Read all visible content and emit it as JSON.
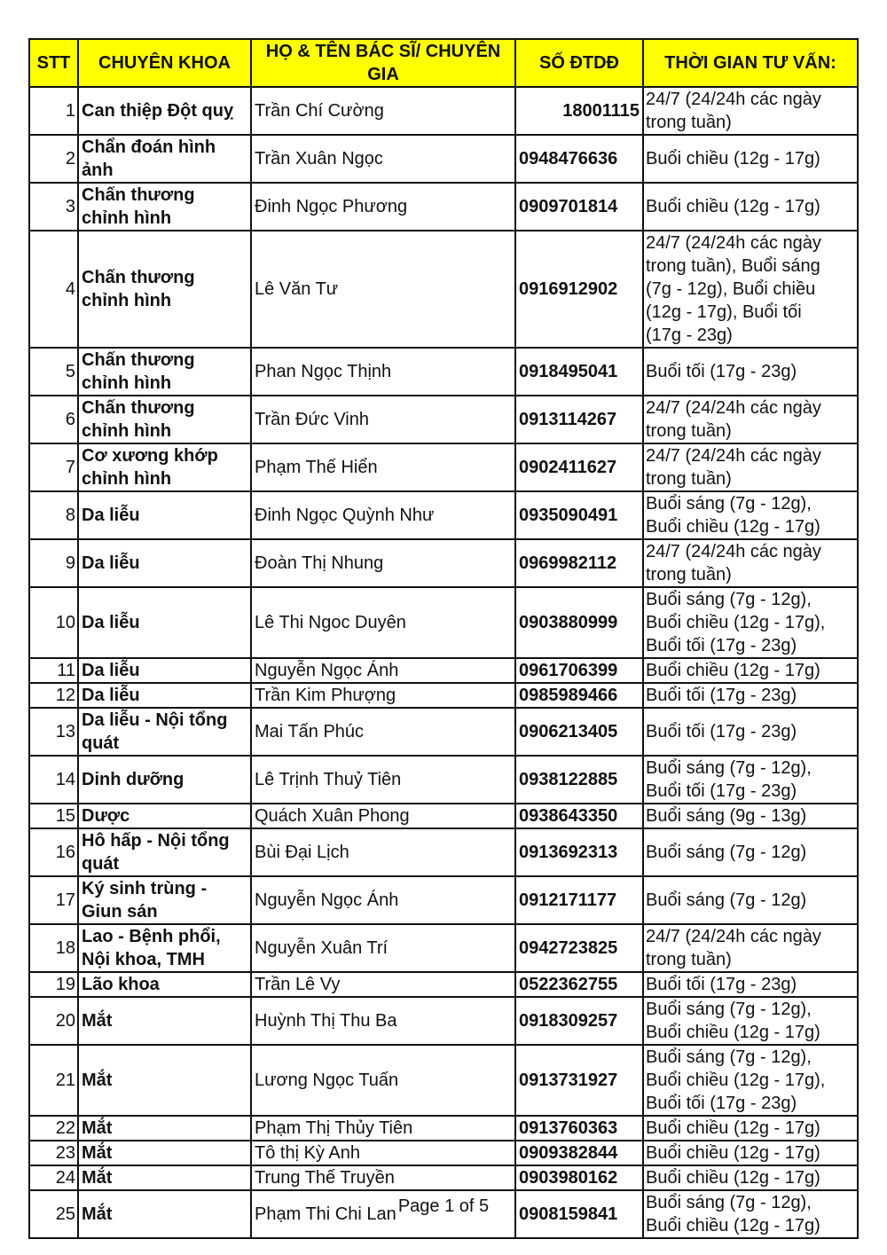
{
  "headers": [
    "STT",
    "CHUYÊN KHOA",
    "HỌ & TÊN BÁC SĨ/ CHUYÊN GIA",
    "SỐ ĐTDĐ",
    "THỜI GIAN TƯ VẤN:"
  ],
  "header_color": "#ffff00",
  "rows": [
    {
      "stt": "1",
      "spec": "Can thiệp Đột quỵ",
      "name": "Trần Chí Cường",
      "phone": "18001115",
      "time": "24/7 (24/24h các ngày\ntrong tuần)"
    },
    {
      "stt": "2",
      "spec": "Chẩn đoán hình\nảnh",
      "name": "Trần Xuân Ngọc",
      "phone": "0948476636",
      "time": "Buổi chiều (12g - 17g)"
    },
    {
      "stt": "3",
      "spec": "Chấn thương\nchỉnh hình",
      "name": "Đinh Ngọc Phương",
      "phone": "0909701814",
      "time": "Buổi chiều (12g - 17g)"
    },
    {
      "stt": "4",
      "spec": "Chấn thương\nchỉnh hình",
      "name": "Lê Văn Tư",
      "phone": "0916912902",
      "time": "24/7 (24/24h các ngày\ntrong tuần), Buổi sáng\n(7g - 12g), Buổi chiều\n(12g - 17g), Buổi tối\n(17g - 23g)"
    },
    {
      "stt": "5",
      "spec": "Chấn thương\nchỉnh hình",
      "name": "Phan Ngọc Thịnh",
      "phone": "0918495041",
      "time": "Buổi tối (17g - 23g)"
    },
    {
      "stt": "6",
      "spec": "Chấn thương\nchỉnh hình",
      "name": "Trần Đức Vinh",
      "phone": "0913114267",
      "time": "24/7 (24/24h các ngày\ntrong tuần)"
    },
    {
      "stt": "7",
      "spec": "Cơ xương khớp\nchỉnh hình",
      "name": "Phạm Thế Hiển",
      "phone": "0902411627",
      "time": "24/7 (24/24h các ngày\ntrong tuần)"
    },
    {
      "stt": "8",
      "spec": "Da liễu",
      "name": "Đinh Ngọc Quỳnh Như",
      "phone": "0935090491",
      "time": "Buổi sáng (7g - 12g),\nBuổi chiều (12g - 17g)"
    },
    {
      "stt": "9",
      "spec": "Da liễu",
      "name": "Đoàn Thị Nhung",
      "phone": "0969982112",
      "time": "24/7 (24/24h các ngày\ntrong tuần)"
    },
    {
      "stt": "10",
      "spec": "Da liễu",
      "name": "Lê Thi Ngoc Duyên",
      "phone": "0903880999",
      "time": "Buổi sáng (7g - 12g),\nBuổi chiều (12g - 17g),\nBuổi tối (17g - 23g)"
    },
    {
      "stt": "11",
      "spec": "Da liễu",
      "name": "Nguyễn Ngọc Ánh",
      "phone": "0961706399",
      "time": "Buổi chiều (12g - 17g)"
    },
    {
      "stt": "12",
      "spec": "Da liễu",
      "name": "Trần Kim Phượng",
      "phone": "0985989466",
      "time": "Buổi tối (17g - 23g)"
    },
    {
      "stt": "13",
      "spec": "Da liễu - Nội tổng\nquát",
      "name": "Mai Tấn Phúc",
      "phone": "0906213405",
      "time": "Buổi tối (17g - 23g)"
    },
    {
      "stt": "14",
      "spec": "Dinh dưỡng",
      "name": "Lê Trịnh Thuỷ Tiên",
      "phone": "0938122885",
      "time": "Buổi sáng (7g - 12g),\nBuổi tối (17g - 23g)"
    },
    {
      "stt": "15",
      "spec": "Dược",
      "name": "Quách Xuân Phong",
      "phone": "0938643350",
      "time": "Buổi sáng (9g - 13g)"
    },
    {
      "stt": "16",
      "spec": "Hô hấp - Nội tổng\nquát",
      "name": "Bùi Đại Lịch",
      "phone": "0913692313",
      "time": "Buổi sáng (7g - 12g)"
    },
    {
      "stt": "17",
      "spec": "Ký sinh trùng -\nGiun sán",
      "name": "Nguyễn Ngọc Ánh",
      "phone": "0912171177",
      "time": "Buổi sáng (7g - 12g)"
    },
    {
      "stt": "18",
      "spec": "Lao - Bệnh phổi,\nNội khoa, TMH",
      "name": "Nguyễn Xuân Trí",
      "phone": "0942723825",
      "time": "24/7 (24/24h các ngày\ntrong tuần)"
    },
    {
      "stt": "19",
      "spec": "Lão khoa",
      "name": "Trần Lê Vy",
      "phone": "0522362755",
      "time": "Buổi tối (17g - 23g)"
    },
    {
      "stt": "20",
      "spec": "Mắt",
      "name": "Huỳnh Thị Thu Ba",
      "phone": "0918309257",
      "time": "Buổi sáng (7g - 12g),\nBuổi chiều (12g - 17g)"
    },
    {
      "stt": "21",
      "spec": "Mắt",
      "name": "Lương Ngọc Tuấn",
      "phone": "0913731927",
      "time": "Buổi sáng (7g - 12g),\nBuổi chiều (12g - 17g),\nBuổi tối (17g - 23g)"
    },
    {
      "stt": "22",
      "spec": "Mắt",
      "name": "Phạm Thị Thủy Tiên",
      "phone": "0913760363",
      "time": "Buổi chiều (12g - 17g)"
    },
    {
      "stt": "23",
      "spec": "Mắt",
      "name": "Tô thị Kỳ Anh",
      "phone": "0909382844",
      "time": "Buổi chiều (12g - 17g)"
    },
    {
      "stt": "24",
      "spec": "Mắt",
      "name": "Trung Thế Truyền",
      "phone": "0903980162",
      "time": "Buổi chiều (12g - 17g)"
    },
    {
      "stt": "25",
      "spec": "Mắt",
      "name": "Phạm Thi Chi Lan",
      "phone": "0908159841",
      "time": "Buổi sáng (7g - 12g),\nBuổi chiều (12g - 17g)"
    }
  ],
  "footer": "Page 1 of 5"
}
